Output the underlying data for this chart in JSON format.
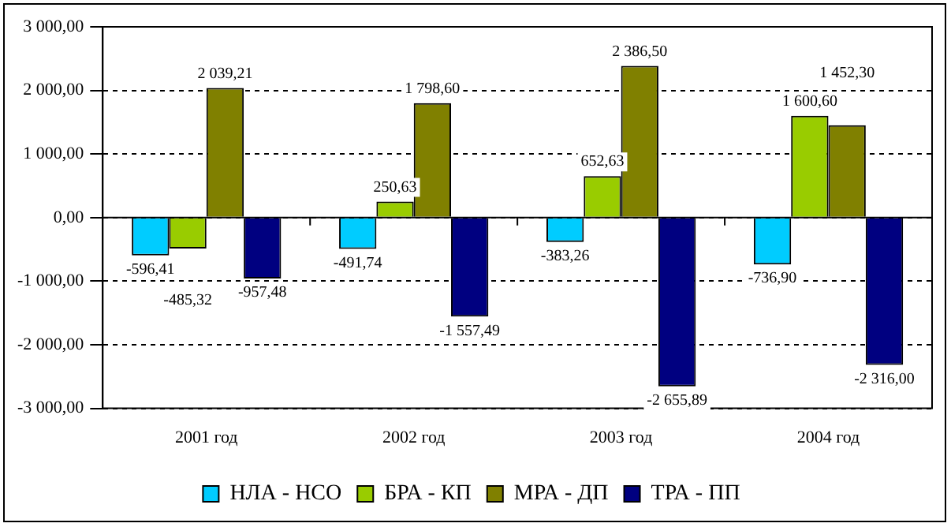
{
  "chart_data": {
    "type": "bar",
    "categories": [
      "2001 год",
      "2002 год",
      "2003 год",
      "2004 год"
    ],
    "series": [
      {
        "name": "НЛА - НСО",
        "color": "#00ccff",
        "values": [
          -596.41,
          -491.74,
          -383.26,
          -736.9
        ],
        "value_labels": [
          "-596,41",
          "-491,74",
          "-383,26",
          "-736,90"
        ]
      },
      {
        "name": "БРА - КП",
        "color": "#99cc00",
        "values": [
          -485.32,
          250.63,
          652.63,
          1600.6
        ],
        "value_labels": [
          "-485,32",
          "250,63",
          "652,63",
          "1 600,60"
        ]
      },
      {
        "name": "МРА - ДП",
        "color": "#808000",
        "values": [
          2039.21,
          1798.6,
          2386.5,
          1452.3
        ],
        "value_labels": [
          "2 039,21",
          "1 798,60",
          "2 386,50",
          "1 452,30"
        ]
      },
      {
        "name": "ТРА - ПП",
        "color": "#000080",
        "values": [
          -957.48,
          -1557.49,
          -2655.89,
          -2316.0
        ],
        "value_labels": [
          "-957,48",
          "-1 557,49",
          "-2 655,89",
          "-2 316,00"
        ]
      }
    ],
    "ylim": [
      -3000,
      3000
    ],
    "yticks": [
      {
        "value": -3000,
        "label": "-3 000,00"
      },
      {
        "value": -2000,
        "label": "-2 000,00"
      },
      {
        "value": -1000,
        "label": "-1 000,00"
      },
      {
        "value": 0,
        "label": "0,00"
      },
      {
        "value": 1000,
        "label": "1 000,00"
      },
      {
        "value": 2000,
        "label": "2 000,00"
      },
      {
        "value": 3000,
        "label": "3 000,00"
      }
    ],
    "grid": "y",
    "legend": "bottom"
  }
}
